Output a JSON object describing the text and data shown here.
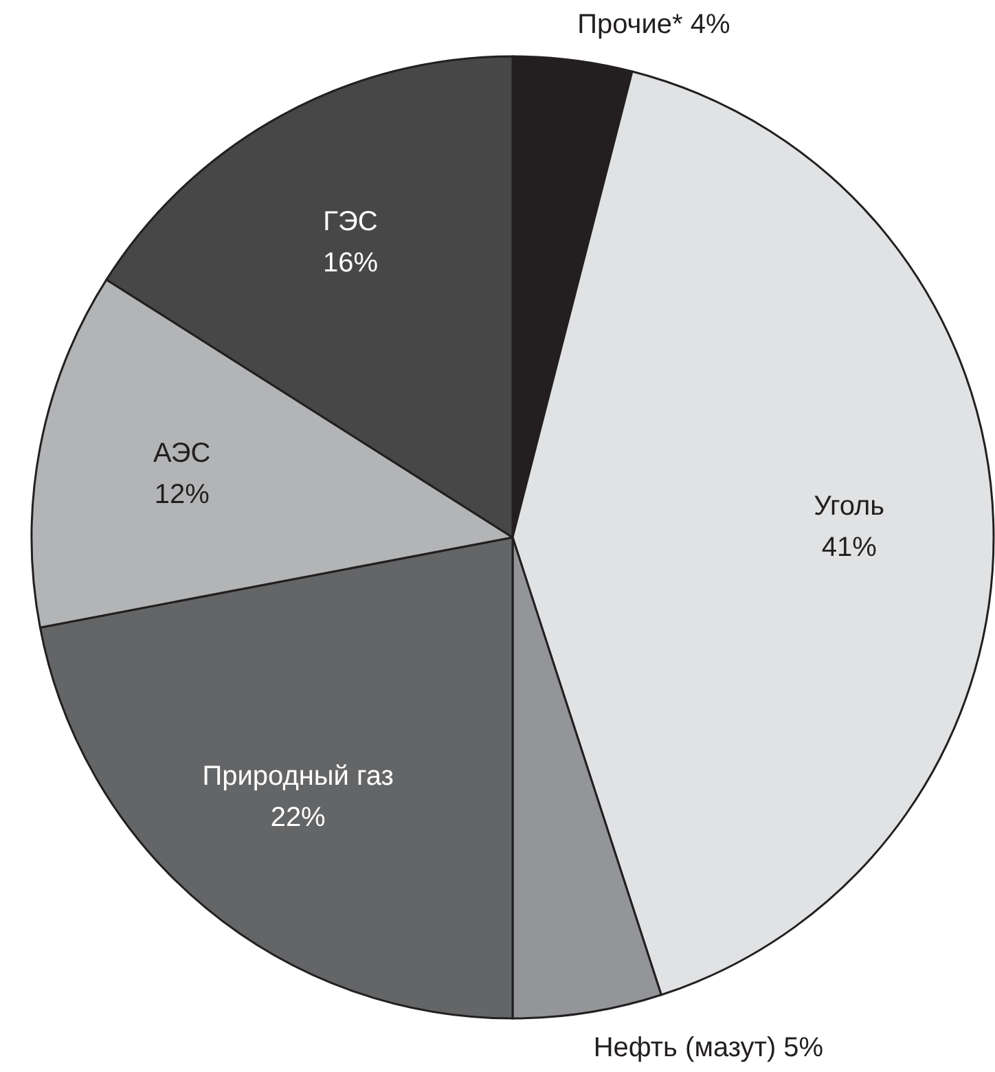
{
  "chart_data": {
    "type": "pie",
    "categories": [
      "Прочие*",
      "Уголь",
      "Нефть (мазут)",
      "Природный газ",
      "АЭС",
      "ГЭС"
    ],
    "values": [
      4,
      41,
      5,
      22,
      12,
      16
    ],
    "colors": [
      "#231f20",
      "#e1e2e3",
      "#939598",
      "#646567",
      "#b3b4b6",
      "#474748"
    ],
    "value_labels": [
      "4%",
      "41%",
      "5%",
      "22%",
      "12%",
      "16%"
    ]
  }
}
